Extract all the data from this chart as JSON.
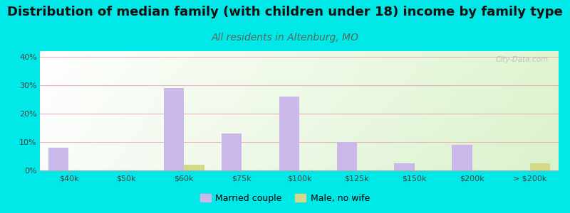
{
  "title": "Distribution of median family (with children under 18) income by family type",
  "subtitle": "All residents in Altenburg, MO",
  "title_fontsize": 13,
  "subtitle_fontsize": 10,
  "categories": [
    "$40k",
    "$50k",
    "$60k",
    "$75k",
    "$100k",
    "$125k",
    "$150k",
    "$200k",
    "> $200k"
  ],
  "married_couple": [
    8,
    0,
    29,
    13,
    26,
    10,
    2.5,
    9,
    0
  ],
  "male_no_wife": [
    0,
    0,
    2,
    0,
    0,
    0,
    0,
    0,
    2.5
  ],
  "married_color": "#c9b8e8",
  "male_color": "#d4d98a",
  "bar_width": 0.35,
  "ylim": [
    0,
    42
  ],
  "yticks": [
    0,
    10,
    20,
    30,
    40
  ],
  "ytick_labels": [
    "0%",
    "10%",
    "20%",
    "30%",
    "40%"
  ],
  "grid_color": "#e8a0b0",
  "outer_bg": "#00e8e8",
  "watermark": "City-Data.com",
  "legend_married": "Married couple",
  "legend_male": "Male, no wife",
  "title_color": "#111111",
  "subtitle_color": "#556655"
}
